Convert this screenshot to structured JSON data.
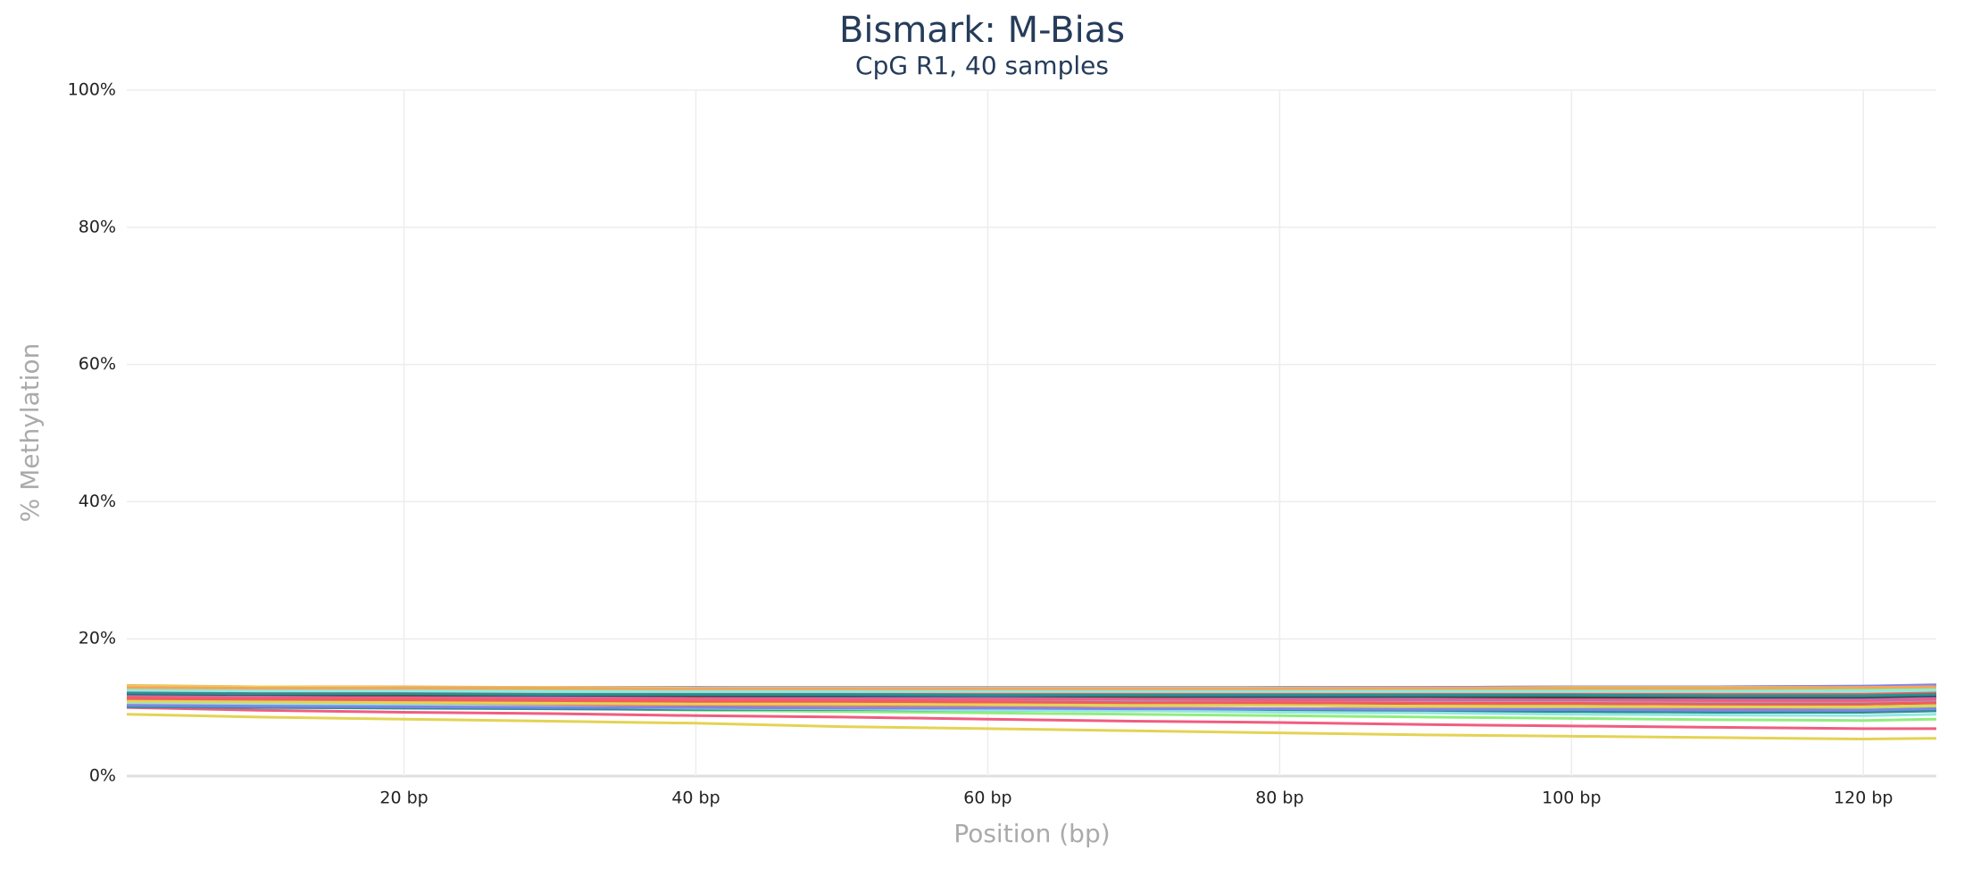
{
  "chart_data": {
    "type": "line",
    "title": "Bismark: M-Bias",
    "subtitle": "CpG R1, 40 samples",
    "x_label": "Position (bp)",
    "y_label": "% Methylation",
    "grid": true,
    "xlim": [
      1,
      125
    ],
    "ylim": [
      0,
      100
    ],
    "xticks": [
      {
        "value": 20,
        "label": "20 bp"
      },
      {
        "value": 40,
        "label": "40 bp"
      },
      {
        "value": 60,
        "label": "60 bp"
      },
      {
        "value": 80,
        "label": "80 bp"
      },
      {
        "value": 100,
        "label": "100 bp"
      },
      {
        "value": 120,
        "label": "120 bp"
      }
    ],
    "yticks": [
      {
        "value": 0,
        "label": "0%"
      },
      {
        "value": 20,
        "label": "20%"
      },
      {
        "value": 40,
        "label": "40%"
      },
      {
        "value": 60,
        "label": "60%"
      },
      {
        "value": 80,
        "label": "80%"
      },
      {
        "value": 100,
        "label": "100%"
      }
    ],
    "x": [
      1,
      10,
      20,
      30,
      40,
      50,
      60,
      70,
      80,
      90,
      100,
      110,
      120,
      125
    ],
    "series": [
      {
        "color": "#7cb5ec",
        "values": [
          12.5,
          12.4,
          12.5,
          12.6,
          12.7,
          12.8,
          12.8,
          12.8,
          12.9,
          12.9,
          13.0,
          13.0,
          13.1,
          13.2
        ]
      },
      {
        "color": "#434348",
        "values": [
          12.1,
          12.0,
          11.9,
          11.8,
          11.8,
          11.7,
          11.6,
          11.6,
          11.5,
          11.5,
          11.4,
          11.4,
          11.3,
          11.5
        ]
      },
      {
        "color": "#90ed7d",
        "values": [
          10.5,
          10.3,
          10.1,
          9.9,
          9.6,
          9.4,
          9.2,
          9.0,
          8.8,
          8.6,
          8.4,
          8.2,
          8.1,
          8.3
        ]
      },
      {
        "color": "#f7a35c",
        "values": [
          13.2,
          13.0,
          13.0,
          12.9,
          12.9,
          12.8,
          12.8,
          12.8,
          12.9,
          12.9,
          13.0,
          13.0,
          13.0,
          13.1
        ]
      },
      {
        "color": "#8085e9",
        "values": [
          12.8,
          12.8,
          12.9,
          12.9,
          12.9,
          12.9,
          12.9,
          12.9,
          12.9,
          12.9,
          13.0,
          13.0,
          13.1,
          13.3
        ]
      },
      {
        "color": "#f15c80",
        "values": [
          10.0,
          9.6,
          9.3,
          9.1,
          8.8,
          8.6,
          8.3,
          8.0,
          7.8,
          7.5,
          7.3,
          7.1,
          6.9,
          6.9
        ]
      },
      {
        "color": "#e4d354",
        "values": [
          9.0,
          8.6,
          8.3,
          8.0,
          7.7,
          7.2,
          6.9,
          6.6,
          6.3,
          6.0,
          5.8,
          5.6,
          5.4,
          5.5
        ]
      },
      {
        "color": "#2b908f",
        "values": [
          11.0,
          10.9,
          10.8,
          10.7,
          10.6,
          10.6,
          10.5,
          10.5,
          10.4,
          10.4,
          10.3,
          10.3,
          10.2,
          10.5
        ]
      },
      {
        "color": "#f45b5b",
        "values": [
          11.8,
          11.7,
          11.6,
          11.6,
          11.5,
          11.5,
          11.4,
          11.4,
          11.3,
          11.3,
          11.3,
          11.2,
          11.2,
          11.4
        ]
      },
      {
        "color": "#91e8e1",
        "values": [
          11.5,
          11.3,
          11.1,
          11.0,
          10.9,
          10.8,
          10.7,
          10.6,
          10.5,
          10.5,
          10.4,
          10.4,
          10.3,
          10.5
        ]
      },
      {
        "color": "#7cb5ec",
        "values": [
          10.2,
          10.1,
          10.0,
          9.9,
          9.8,
          9.8,
          9.7,
          9.7,
          9.6,
          9.6,
          9.5,
          9.5,
          9.4,
          9.6
        ]
      },
      {
        "color": "#434348",
        "values": [
          11.2,
          11.1,
          11.0,
          10.9,
          10.9,
          10.8,
          10.8,
          10.7,
          10.7,
          10.7,
          10.6,
          10.6,
          10.5,
          10.7
        ]
      },
      {
        "color": "#90ed7d",
        "values": [
          12.0,
          11.9,
          11.9,
          11.8,
          11.8,
          11.8,
          11.7,
          11.7,
          11.7,
          11.6,
          11.6,
          11.6,
          11.5,
          11.8
        ]
      },
      {
        "color": "#f7a35c",
        "values": [
          11.6,
          11.5,
          11.5,
          11.4,
          11.4,
          11.4,
          11.3,
          11.3,
          11.3,
          11.2,
          11.2,
          11.2,
          11.1,
          11.3
        ]
      },
      {
        "color": "#8085e9",
        "values": [
          10.8,
          10.7,
          10.6,
          10.5,
          10.5,
          10.4,
          10.4,
          10.3,
          10.3,
          10.2,
          10.2,
          10.1,
          10.1,
          10.3
        ]
      },
      {
        "color": "#f15c80",
        "values": [
          11.9,
          11.8,
          11.8,
          11.7,
          11.7,
          11.6,
          11.6,
          11.6,
          11.5,
          11.5,
          11.5,
          11.4,
          11.4,
          11.6
        ]
      },
      {
        "color": "#e4d354",
        "values": [
          13.1,
          13.0,
          12.9,
          12.9,
          12.8,
          12.8,
          12.8,
          12.8,
          12.8,
          12.8,
          12.9,
          12.9,
          12.9,
          13.0
        ]
      },
      {
        "color": "#2b908f",
        "values": [
          12.3,
          12.2,
          12.1,
          12.1,
          12.0,
          12.0,
          12.0,
          11.9,
          11.9,
          11.9,
          11.9,
          11.8,
          11.8,
          12.0
        ]
      },
      {
        "color": "#f45b5b",
        "values": [
          10.6,
          10.5,
          10.4,
          10.3,
          10.2,
          10.1,
          10.0,
          9.9,
          9.8,
          9.7,
          9.6,
          9.5,
          9.4,
          9.6
        ]
      },
      {
        "color": "#91e8e1",
        "values": [
          12.6,
          12.5,
          12.5,
          12.4,
          12.4,
          12.4,
          12.4,
          12.4,
          12.4,
          12.4,
          12.4,
          12.5,
          12.5,
          12.7
        ]
      },
      {
        "color": "#7cb5ec",
        "values": [
          11.4,
          11.3,
          11.2,
          11.2,
          11.1,
          11.1,
          11.0,
          11.0,
          11.0,
          10.9,
          10.9,
          10.9,
          10.8,
          11.0
        ]
      },
      {
        "color": "#434348",
        "values": [
          10.9,
          10.8,
          10.8,
          10.7,
          10.7,
          10.6,
          10.6,
          10.6,
          10.5,
          10.5,
          10.5,
          10.4,
          10.4,
          10.6
        ]
      },
      {
        "color": "#90ed7d",
        "values": [
          12.7,
          12.6,
          12.6,
          12.6,
          12.6,
          12.6,
          12.6,
          12.6,
          12.7,
          12.7,
          12.7,
          12.7,
          12.8,
          12.9
        ]
      },
      {
        "color": "#f7a35c",
        "values": [
          10.4,
          10.3,
          10.2,
          10.1,
          10.0,
          10.0,
          9.9,
          9.9,
          9.8,
          9.8,
          9.7,
          9.7,
          9.6,
          9.8
        ]
      },
      {
        "color": "#8085e9",
        "values": [
          11.7,
          11.6,
          11.6,
          11.5,
          11.5,
          11.5,
          11.5,
          11.4,
          11.4,
          11.4,
          11.4,
          11.4,
          11.3,
          11.5
        ]
      },
      {
        "color": "#f15c80",
        "values": [
          11.1,
          11.0,
          10.9,
          10.8,
          10.7,
          10.6,
          10.5,
          10.4,
          10.3,
          10.2,
          10.1,
          10.0,
          9.9,
          10.1
        ]
      },
      {
        "color": "#e4d354",
        "values": [
          12.2,
          12.1,
          12.1,
          12.0,
          12.0,
          11.9,
          11.9,
          11.9,
          11.8,
          11.8,
          11.8,
          11.8,
          11.7,
          11.9
        ]
      },
      {
        "color": "#2b908f",
        "values": [
          10.1,
          10.0,
          9.9,
          9.8,
          9.7,
          9.7,
          9.6,
          9.5,
          9.5,
          9.4,
          9.4,
          9.3,
          9.3,
          9.5
        ]
      },
      {
        "color": "#f45b5b",
        "values": [
          12.4,
          12.3,
          12.3,
          12.2,
          12.2,
          12.2,
          12.1,
          12.1,
          12.1,
          12.1,
          12.1,
          12.1,
          12.0,
          12.2
        ]
      },
      {
        "color": "#91e8e1",
        "values": [
          10.7,
          10.5,
          10.3,
          10.1,
          9.9,
          9.8,
          9.6,
          9.5,
          9.3,
          9.2,
          9.0,
          8.9,
          8.8,
          9.0
        ]
      },
      {
        "color": "#7cb5ec",
        "values": [
          11.3,
          11.2,
          11.2,
          11.1,
          11.1,
          11.0,
          11.0,
          11.0,
          10.9,
          10.9,
          10.9,
          10.8,
          10.8,
          11.0
        ]
      },
      {
        "color": "#434348",
        "values": [
          12.0,
          11.9,
          11.8,
          11.8,
          11.7,
          11.7,
          11.7,
          11.6,
          11.6,
          11.6,
          11.5,
          11.5,
          11.5,
          11.7
        ]
      },
      {
        "color": "#90ed7d",
        "values": [
          11.0,
          10.9,
          10.8,
          10.7,
          10.6,
          10.5,
          10.4,
          10.4,
          10.3,
          10.2,
          10.1,
          10.1,
          10.0,
          10.2
        ]
      },
      {
        "color": "#f7a35c",
        "values": [
          12.9,
          12.8,
          12.8,
          12.8,
          12.7,
          12.7,
          12.7,
          12.7,
          12.7,
          12.8,
          12.8,
          12.8,
          12.9,
          13.0
        ]
      },
      {
        "color": "#8085e9",
        "values": [
          10.3,
          10.2,
          10.1,
          10.0,
          10.0,
          9.9,
          9.9,
          9.8,
          9.8,
          9.7,
          9.7,
          9.6,
          9.6,
          9.8
        ]
      },
      {
        "color": "#f15c80",
        "values": [
          11.5,
          11.4,
          11.4,
          11.3,
          11.3,
          11.2,
          11.2,
          11.2,
          11.1,
          11.1,
          11.1,
          11.0,
          11.0,
          11.2
        ]
      },
      {
        "color": "#e4d354",
        "values": [
          10.9,
          10.8,
          10.7,
          10.6,
          10.5,
          10.5,
          10.4,
          10.3,
          10.3,
          10.2,
          10.2,
          10.1,
          10.1,
          10.3
        ]
      },
      {
        "color": "#2b908f",
        "values": [
          12.1,
          12.0,
          12.0,
          11.9,
          11.9,
          11.9,
          11.8,
          11.8,
          11.8,
          11.8,
          11.8,
          11.7,
          11.7,
          11.9
        ]
      },
      {
        "color": "#f45b5b",
        "values": [
          11.3,
          11.2,
          11.1,
          11.0,
          10.9,
          10.9,
          10.8,
          10.7,
          10.7,
          10.6,
          10.6,
          10.5,
          10.5,
          10.7
        ]
      },
      {
        "color": "#91e8e1",
        "values": [
          12.5,
          12.4,
          12.4,
          12.3,
          12.3,
          12.3,
          12.3,
          12.3,
          12.3,
          12.3,
          12.3,
          12.3,
          12.3,
          12.5
        ]
      }
    ]
  }
}
